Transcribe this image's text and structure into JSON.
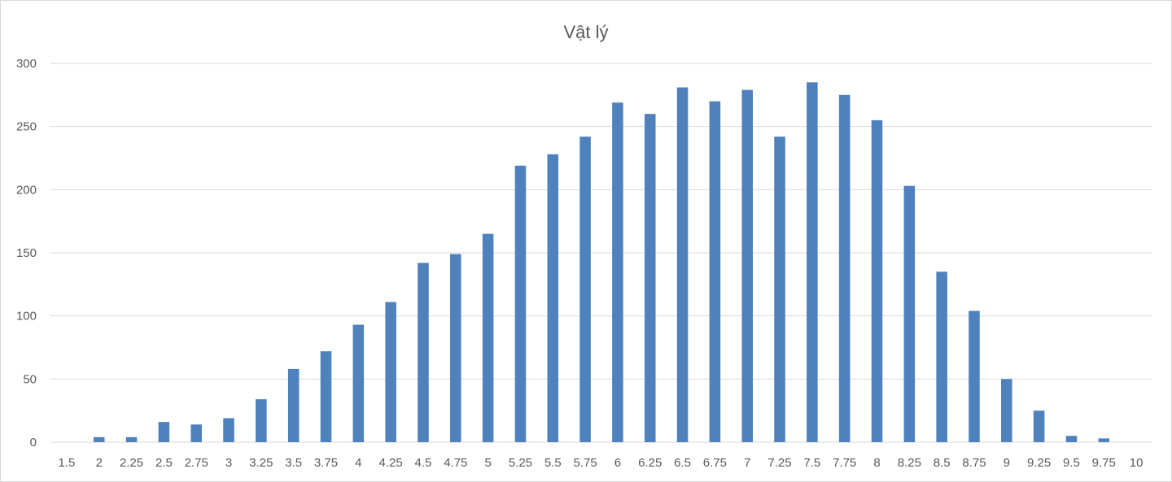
{
  "chart_data": {
    "type": "bar",
    "title": "Vật lý",
    "xlabel": "",
    "ylabel": "",
    "categories": [
      "1.5",
      "2",
      "2.25",
      "2.5",
      "2.75",
      "3",
      "3.25",
      "3.5",
      "3.75",
      "4",
      "4.25",
      "4.5",
      "4.75",
      "5",
      "5.25",
      "5.5",
      "5.75",
      "6",
      "6.25",
      "6.5",
      "6.75",
      "7",
      "7.25",
      "7.5",
      "7.75",
      "8",
      "8.25",
      "8.5",
      "8.75",
      "9",
      "9.25",
      "9.5",
      "9.75",
      "10"
    ],
    "values": [
      0,
      4,
      4,
      16,
      14,
      19,
      34,
      58,
      72,
      93,
      111,
      142,
      149,
      165,
      219,
      228,
      242,
      269,
      260,
      281,
      270,
      279,
      242,
      285,
      275,
      255,
      203,
      135,
      104,
      50,
      25,
      5,
      3,
      0
    ],
    "ylim": [
      0,
      300
    ],
    "yticks": [
      0,
      50,
      100,
      150,
      200,
      250,
      300
    ],
    "grid": true,
    "legend": "none",
    "bar_color": "#4f81bd"
  }
}
